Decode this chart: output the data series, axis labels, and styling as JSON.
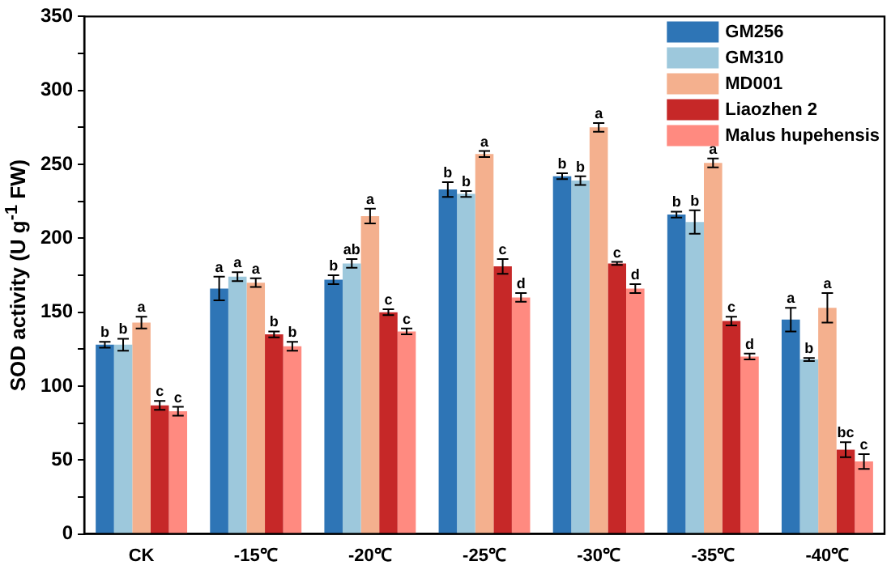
{
  "chart_data": {
    "type": "bar",
    "ylabel": "SOD activity (U g$^{-1}$ FW)",
    "categories": [
      "CK",
      "-15℃",
      "-20℃",
      "-25℃",
      "-30℃",
      "-35℃",
      "-40℃"
    ],
    "series": [
      {
        "name": "GM256",
        "color": "#2e75b6",
        "values": [
          128,
          166,
          172,
          233,
          242,
          216,
          145
        ],
        "errors": [
          2,
          8,
          3,
          5,
          2,
          2,
          8
        ],
        "value_labels": [
          "b",
          "a",
          "b",
          "b",
          "b",
          "b",
          "a"
        ]
      },
      {
        "name": "GM310",
        "color": "#9dc8dc",
        "values": [
          128,
          174,
          183,
          230,
          239,
          211,
          118
        ],
        "errors": [
          4,
          3,
          3,
          2,
          3,
          8,
          1
        ],
        "value_labels": [
          "b",
          "a",
          "ab",
          "b",
          "b",
          "b",
          "b"
        ]
      },
      {
        "name": "MD001",
        "color": "#f4b08e",
        "values": [
          143,
          170,
          215,
          257,
          275,
          251,
          153
        ],
        "errors": [
          4,
          3,
          5,
          2,
          3,
          3,
          10
        ],
        "value_labels": [
          "a",
          "a",
          "a",
          "a",
          "a",
          "a",
          "a"
        ]
      },
      {
        "name": "Liaozhen 2",
        "color": "#c62828",
        "values": [
          87,
          135,
          150,
          181,
          183,
          144,
          57
        ],
        "errors": [
          3,
          2,
          2,
          5,
          1,
          3,
          5
        ],
        "value_labels": [
          "c",
          "b",
          "c",
          "c",
          "c",
          "c",
          "bc"
        ]
      },
      {
        "name": "Malus hupehensis",
        "color": "#ff8a80",
        "values": [
          83,
          127,
          137,
          160,
          166,
          120,
          49
        ],
        "errors": [
          3,
          3,
          2,
          3,
          3,
          2,
          5
        ],
        "value_labels": [
          "c",
          "b",
          "c",
          "d",
          "d",
          "d",
          "c"
        ]
      }
    ],
    "ylim": [
      0,
      350
    ],
    "yticks": [
      0,
      {
        "value": 25,
        "label": null
      },
      50,
      {
        "value": 75,
        "label": null
      },
      100,
      {
        "value": 125,
        "label": null
      },
      150,
      {
        "value": 175,
        "label": null
      },
      200,
      {
        "value": 225,
        "label": null
      },
      250,
      {
        "value": 275,
        "label": null
      },
      300,
      {
        "value": 325,
        "label": null
      },
      350
    ],
    "grid": false,
    "legend": "top right"
  }
}
